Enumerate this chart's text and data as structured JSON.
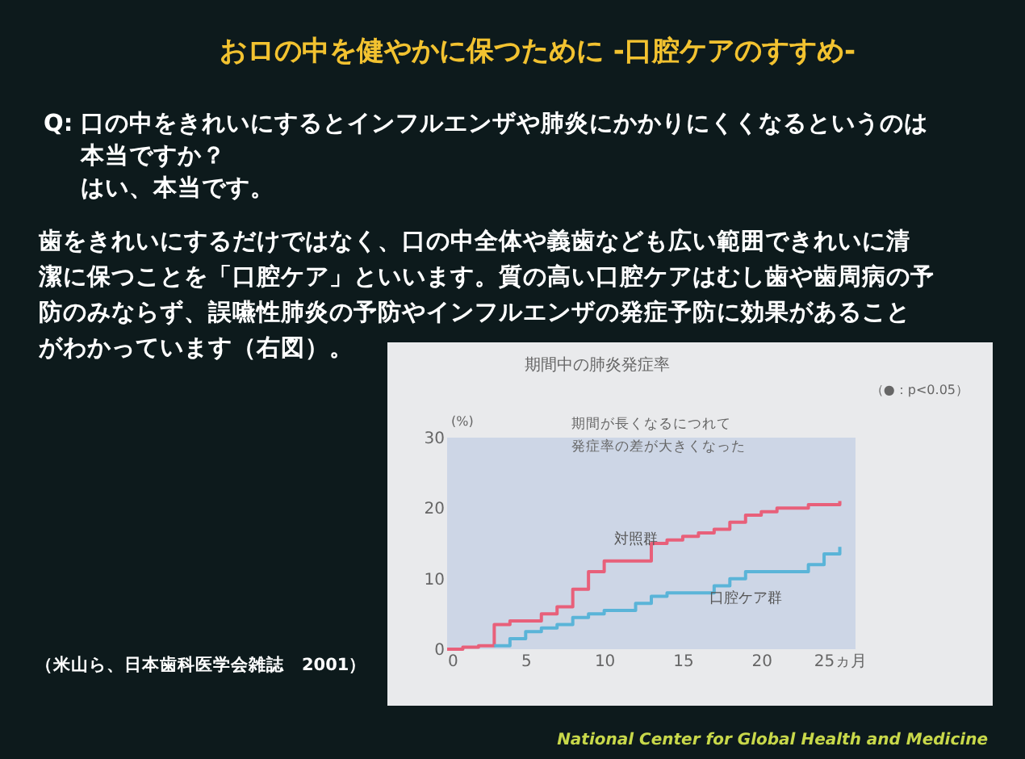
{
  "chart_data": {
    "type": "step",
    "title": "おロの中を健やかに保つために -口腔ケアのすすめ-",
    "subtitle": "期間中の肺炎発症率",
    "ylabel": "(%)",
    "x": [
      0,
      1,
      2,
      3,
      4,
      5,
      6,
      7,
      8,
      9,
      10,
      11,
      12,
      13,
      14,
      15,
      16,
      17,
      18,
      19,
      20,
      21,
      22,
      23,
      24,
      25
    ],
    "series": [
      {
        "name": "対照群",
        "color": "#e8607a",
        "values": [
          0,
          0.3,
          0.5,
          3.5,
          4,
          4,
          5,
          6,
          8.5,
          11,
          12.5,
          12.5,
          12.5,
          15,
          15.5,
          16,
          16.5,
          17,
          18,
          19,
          19.5,
          20,
          20,
          20.5,
          20.5,
          21
        ]
      },
      {
        "name": "口腔ケア群",
        "color": "#5ab4d8",
        "values": [
          null,
          null,
          null,
          0.5,
          1.5,
          2.5,
          3,
          3.5,
          4.5,
          5,
          5.5,
          5.5,
          6.5,
          7.5,
          8,
          8,
          8,
          9,
          10,
          11,
          11,
          11,
          11,
          12,
          13.5,
          14.5
        ]
      }
    ],
    "xlim": [
      0,
      26
    ],
    "ylim": [
      0,
      30
    ],
    "xticks": [
      0,
      5,
      10,
      15,
      20,
      {
        "value": 25,
        "label": "25ヵ月"
      }
    ],
    "yticks": [
      0,
      10,
      20,
      30
    ],
    "marker": "none",
    "line_style": "solid",
    "annotations": [
      "Q: 口の中をきれいにするとインフルエンザや肺炎にかかりにくくなるというのは",
      "本当ですか？",
      "はい、本当です。",
      "歯をきれいにするだけではなく、口の中全体や義歯なども広い範囲できれいに清",
      "潔に保つことを「口腔ケア」といいます。質の高い口腔ケアはむし歯や歯周病の予",
      "防のみならず、誤嚥性肺炎の予防やインフルエンザの発症予防に効果があること",
      "がわかっています（右図）。",
      "（米山ら、日本歯科医学会雑誌　2001）",
      "National Center for Global Health and Medicine",
      "（●：p<0.05）",
      "期間が長くなるにつれて",
      "発症率の差が大きくなった"
    ]
  }
}
